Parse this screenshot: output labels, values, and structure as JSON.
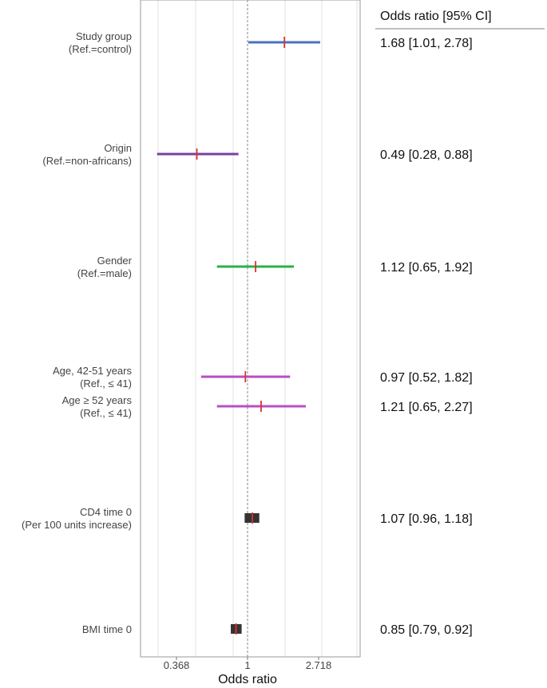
{
  "chart_data": {
    "type": "forest",
    "xlabel": "Odds ratio",
    "column_header": "Odds ratio [95% CI]",
    "x_scale": "log",
    "xlim": [
      0.2,
      5.5
    ],
    "xticks": [
      {
        "value": 0.368,
        "label": "0.368"
      },
      {
        "value": 1,
        "label": "1"
      },
      {
        "value": 2.718,
        "label": "2.718"
      }
    ],
    "reference_line": 1,
    "grid": true,
    "rows": [
      {
        "label": [
          "Study group",
          "(Ref.=control)"
        ],
        "or": 1.68,
        "lo": 1.01,
        "hi": 2.78,
        "ci_text": "1.68 [1.01, 2.78]",
        "color": "#4a72c4",
        "style": "line"
      },
      {
        "label": [
          "Origin",
          "(Ref.=non-africans)"
        ],
        "or": 0.49,
        "lo": 0.28,
        "hi": 0.88,
        "ci_text": "0.49 [0.28, 0.88]",
        "color": "#7b3fa0",
        "style": "line"
      },
      {
        "label": [
          "Gender",
          "(Ref.=male)"
        ],
        "or": 1.12,
        "lo": 0.65,
        "hi": 1.92,
        "ci_text": "1.12 [0.65, 1.92]",
        "color": "#2bb04a",
        "style": "line"
      },
      {
        "label": [
          "Age, 42-51 years",
          "(Ref., ≤ 41)"
        ],
        "or": 0.97,
        "lo": 0.52,
        "hi": 1.82,
        "ci_text": "0.97 [0.52, 1.82]",
        "color": "#b84fc4",
        "style": "line"
      },
      {
        "label": [
          "Age ≥ 52 years",
          "(Ref., ≤ 41)"
        ],
        "or": 1.21,
        "lo": 0.65,
        "hi": 2.27,
        "ci_text": "1.21 [0.65, 2.27]",
        "color": "#b84fc4",
        "style": "line"
      },
      {
        "label": [
          "CD4 time 0",
          "(Per 100 units increase)"
        ],
        "or": 1.07,
        "lo": 0.96,
        "hi": 1.18,
        "ci_text": "1.07 [0.96, 1.18]",
        "color": "#333333",
        "style": "box"
      },
      {
        "label": [
          "BMI time 0"
        ],
        "or": 0.85,
        "lo": 0.79,
        "hi": 0.92,
        "ci_text": "0.85 [0.79, 0.92]",
        "color": "#333333",
        "style": "box"
      }
    ],
    "point_color": "#d9352b"
  }
}
